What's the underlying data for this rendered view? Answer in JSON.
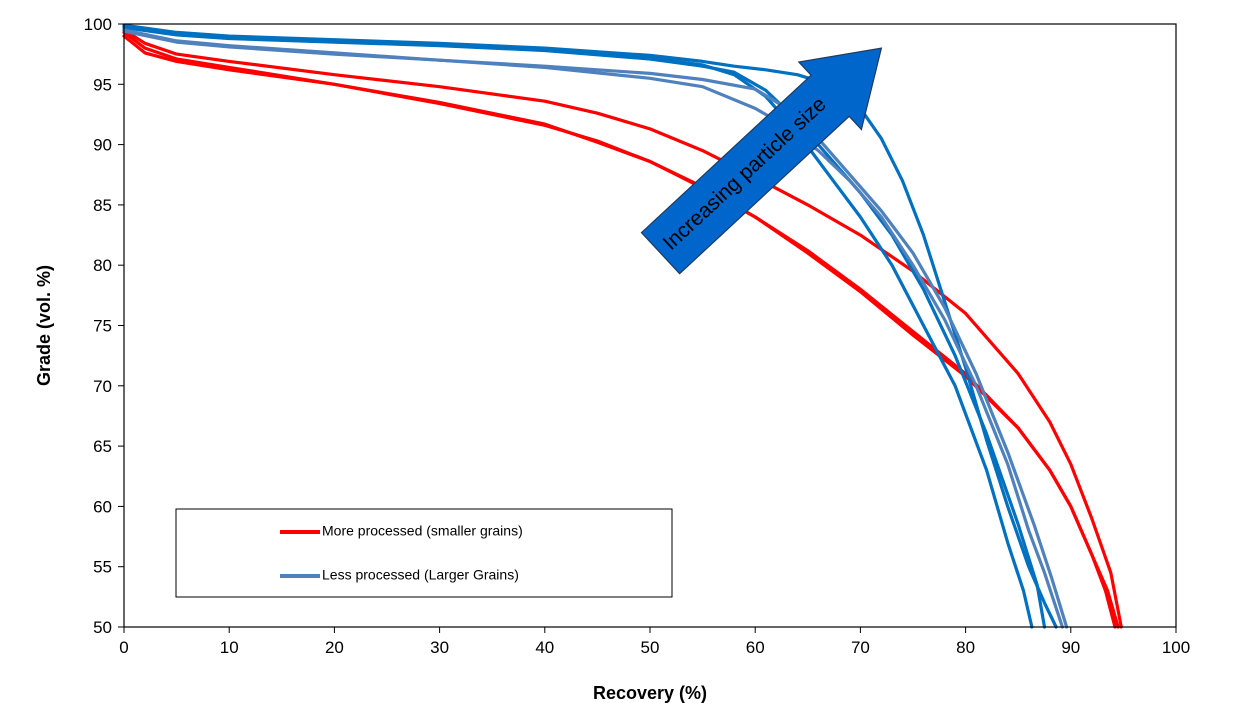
{
  "chart_data": {
    "type": "line",
    "title": "",
    "xlabel": "Recovery (%)",
    "ylabel": "Grade (vol. %)",
    "xlim": [
      0,
      100
    ],
    "ylim": [
      50,
      100
    ],
    "x_ticks": [
      "0",
      "10",
      "20",
      "30",
      "40",
      "50",
      "60",
      "70",
      "80",
      "90",
      "100"
    ],
    "y_ticks": [
      "50",
      "55",
      "60",
      "65",
      "70",
      "75",
      "80",
      "85",
      "90",
      "95",
      "100"
    ],
    "grid": false,
    "legend": {
      "placement": "bottom-left",
      "entries": [
        {
          "label": "More processed (smaller grains)",
          "color": "#ff0000"
        },
        {
          "label": "Less processed (Larger Grains)",
          "color": "#4f81bd"
        }
      ]
    },
    "annotation": {
      "text": "Increasing particle size",
      "style": "arrow",
      "fill": "#0066cc",
      "from": [
        51,
        81
      ],
      "to": [
        72,
        98
      ]
    },
    "series": [
      {
        "group": "More processed (smaller grains)",
        "color": "#ff0000",
        "x": [
          0,
          2,
          5,
          10,
          20,
          30,
          40,
          45,
          50,
          55,
          60,
          65,
          70,
          75,
          80,
          85,
          88,
          90,
          92,
          93.5,
          94.5
        ],
        "y": [
          99.3,
          98.0,
          97.1,
          96.4,
          95.0,
          93.4,
          91.6,
          90.3,
          88.6,
          86.4,
          84.0,
          81.2,
          78.0,
          74.5,
          71.0,
          66.5,
          63.0,
          60.0,
          56.0,
          53.0,
          50.0
        ]
      },
      {
        "group": "More processed (smaller grains)",
        "color": "#ff0000",
        "x": [
          0,
          2,
          5,
          10,
          20,
          30,
          40,
          45,
          50,
          55,
          60,
          65,
          70,
          75,
          80,
          85,
          88,
          90,
          92,
          93.3,
          94.2
        ],
        "y": [
          99.0,
          97.6,
          96.9,
          96.2,
          95.0,
          93.5,
          91.7,
          90.2,
          88.6,
          86.5,
          84.0,
          81.0,
          77.8,
          74.2,
          70.8,
          66.5,
          63.0,
          60.0,
          56.0,
          53.0,
          50.0
        ]
      },
      {
        "group": "More processed (smaller grains)",
        "color": "#ff0000",
        "x": [
          0,
          2,
          5,
          10,
          20,
          30,
          40,
          45,
          50,
          55,
          60,
          65,
          70,
          75,
          80,
          85,
          88,
          90,
          92,
          93.8,
          94.8
        ],
        "y": [
          99.5,
          98.4,
          97.5,
          96.9,
          95.8,
          94.8,
          93.6,
          92.6,
          91.3,
          89.5,
          87.3,
          85.0,
          82.5,
          79.5,
          76.0,
          71.0,
          67.0,
          63.5,
          59.0,
          54.5,
          50.0
        ]
      },
      {
        "group": "Less processed (Larger Grains)",
        "color": "#0070c0",
        "x": [
          0,
          5,
          10,
          20,
          30,
          40,
          50,
          55,
          58,
          61,
          64,
          67,
          70,
          73,
          76,
          79,
          82,
          84,
          85.5,
          86.3
        ],
        "y": [
          99.8,
          99.2,
          98.9,
          98.6,
          98.3,
          97.9,
          97.2,
          96.6,
          95.8,
          94.0,
          91.0,
          87.5,
          84.0,
          80.0,
          75.0,
          70.0,
          63.0,
          57.0,
          53.0,
          50.0
        ]
      },
      {
        "group": "Less processed (Larger Grains)",
        "color": "#0070c0",
        "x": [
          0,
          5,
          10,
          20,
          30,
          40,
          50,
          55,
          58,
          61,
          64,
          67,
          70,
          73,
          76,
          79,
          82,
          85,
          86.8,
          87.5
        ],
        "y": [
          99.7,
          99.1,
          98.8,
          98.5,
          98.2,
          97.8,
          97.1,
          96.5,
          96.0,
          94.5,
          92.0,
          89.0,
          86.0,
          82.5,
          78.0,
          72.5,
          66.0,
          58.5,
          53.5,
          50.0
        ]
      },
      {
        "group": "Less processed (Larger Grains)",
        "color": "#0070c0",
        "x": [
          0,
          5,
          10,
          20,
          30,
          40,
          50,
          55,
          58,
          61,
          64,
          67,
          70,
          72,
          74,
          76,
          78,
          80,
          82,
          84,
          86,
          87.5,
          88.6
        ],
        "y": [
          99.9,
          99.3,
          99.0,
          98.7,
          98.4,
          98.0,
          97.4,
          96.9,
          96.5,
          96.2,
          95.8,
          95.0,
          93.0,
          90.5,
          87.0,
          82.5,
          77.0,
          71.5,
          65.5,
          60.0,
          55.0,
          52.0,
          50.0
        ]
      },
      {
        "group": "Less processed (Larger Grains)",
        "color": "#4f81bd",
        "x": [
          0,
          5,
          10,
          20,
          30,
          40,
          50,
          55,
          60,
          63,
          66,
          69,
          72,
          75,
          78,
          81,
          84,
          86,
          87.5,
          89.2
        ],
        "y": [
          99.5,
          98.6,
          98.2,
          97.6,
          97.0,
          96.4,
          95.5,
          94.8,
          93.0,
          91.5,
          89.5,
          87.0,
          84.0,
          80.0,
          75.5,
          70.0,
          63.5,
          58.0,
          54.5,
          50.0
        ]
      },
      {
        "group": "Less processed (Larger Grains)",
        "color": "#4f81bd",
        "x": [
          0,
          5,
          10,
          20,
          30,
          40,
          50,
          55,
          60,
          63,
          66,
          69,
          72,
          75,
          78,
          81,
          84,
          86.5,
          88.2,
          89.6
        ],
        "y": [
          99.4,
          98.5,
          98.1,
          97.5,
          97.0,
          96.5,
          95.9,
          95.4,
          94.6,
          93.0,
          90.5,
          87.5,
          84.5,
          81.0,
          76.5,
          71.0,
          64.5,
          58.5,
          54.0,
          50.0
        ]
      }
    ]
  }
}
